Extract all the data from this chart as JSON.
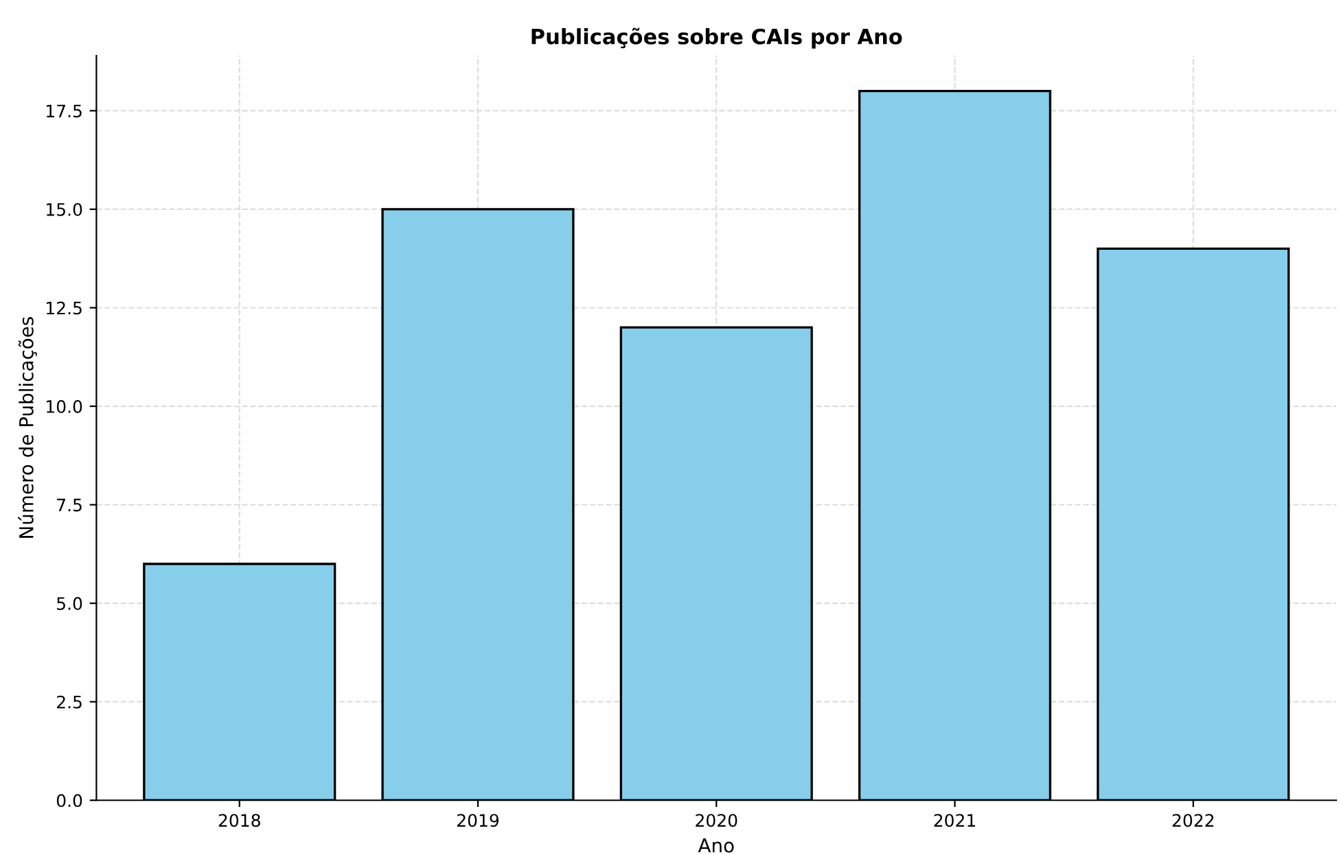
{
  "chart_data": {
    "type": "bar",
    "title": "Publicações sobre CAIs por Ano",
    "xlabel": "Ano",
    "ylabel": "Número de Publicações",
    "categories": [
      "2018",
      "2019",
      "2020",
      "2021",
      "2022"
    ],
    "values": [
      6,
      15,
      12,
      18,
      14
    ],
    "color": "#87ceeb",
    "ylim": [
      0,
      18.9
    ],
    "yticks": [
      {
        "value": 0,
        "label": "0.0"
      },
      {
        "value": 2.5,
        "label": "2.5"
      },
      {
        "value": 5,
        "label": "5.0"
      },
      {
        "value": 7.5,
        "label": "7.5"
      },
      {
        "value": 10,
        "label": "10.0"
      },
      {
        "value": 12.5,
        "label": "12.5"
      },
      {
        "value": 15,
        "label": "15.0"
      },
      {
        "value": 17.5,
        "label": "17.5"
      }
    ],
    "grid": true
  }
}
